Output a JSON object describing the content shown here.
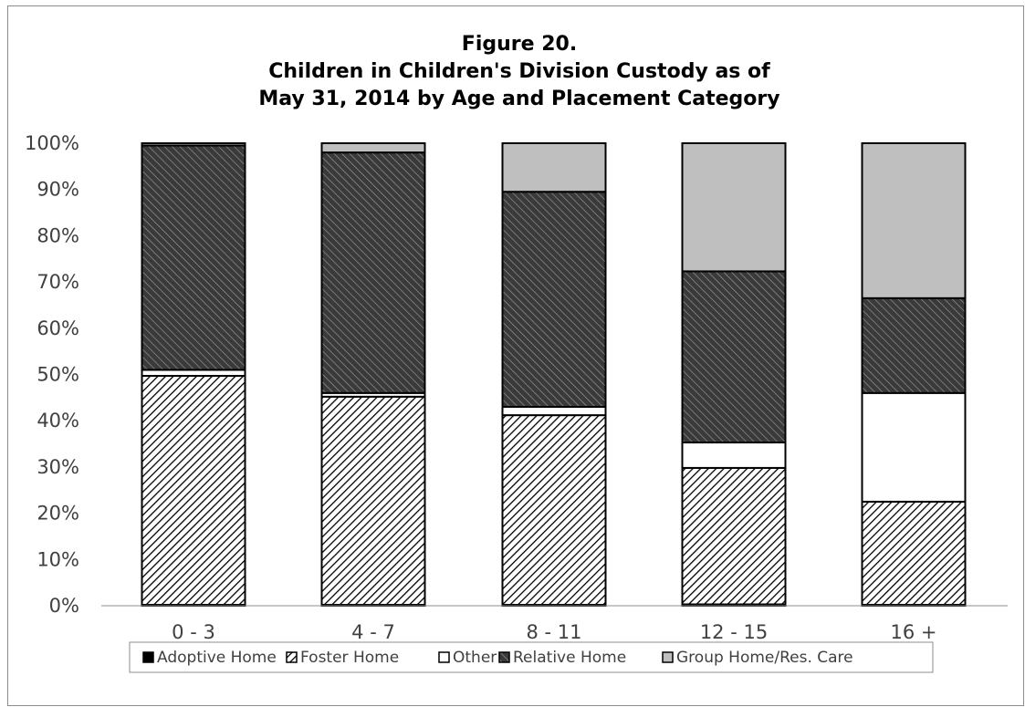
{
  "chart_data": {
    "type": "bar",
    "stacked": true,
    "percent_stacked": true,
    "title_lines": [
      "Figure 20.",
      "Children in Children's Division Custody as of",
      "May 31, 2014 by Age and Placement Category"
    ],
    "categories": [
      "0 - 3",
      "4 - 7",
      "8 - 11",
      "12 - 15",
      "16 +"
    ],
    "ylim": [
      0,
      100
    ],
    "yticks": [
      "0%",
      "10%",
      "20%",
      "30%",
      "40%",
      "50%",
      "60%",
      "70%",
      "80%",
      "90%",
      "100%"
    ],
    "grid": false,
    "legend_position": "bottom",
    "series": [
      {
        "name": "Adoptive Home",
        "pattern": "solid-black",
        "values": [
          0.2,
          0.2,
          0.2,
          0.3,
          0.2
        ]
      },
      {
        "name": "Foster Home",
        "pattern": "diagonal-down-light",
        "values": [
          49.5,
          45.0,
          41.0,
          29.5,
          22.3
        ]
      },
      {
        "name": "Other",
        "pattern": "white",
        "values": [
          1.3,
          0.8,
          1.8,
          5.5,
          23.5
        ]
      },
      {
        "name": "Relative Home",
        "pattern": "diagonal-up-dark",
        "values": [
          48.5,
          52.0,
          46.5,
          37.0,
          20.5
        ]
      },
      {
        "name": "Group Home/Res. Care",
        "pattern": "solid-gray",
        "values": [
          0.5,
          2.0,
          10.5,
          27.7,
          33.5
        ]
      }
    ]
  }
}
